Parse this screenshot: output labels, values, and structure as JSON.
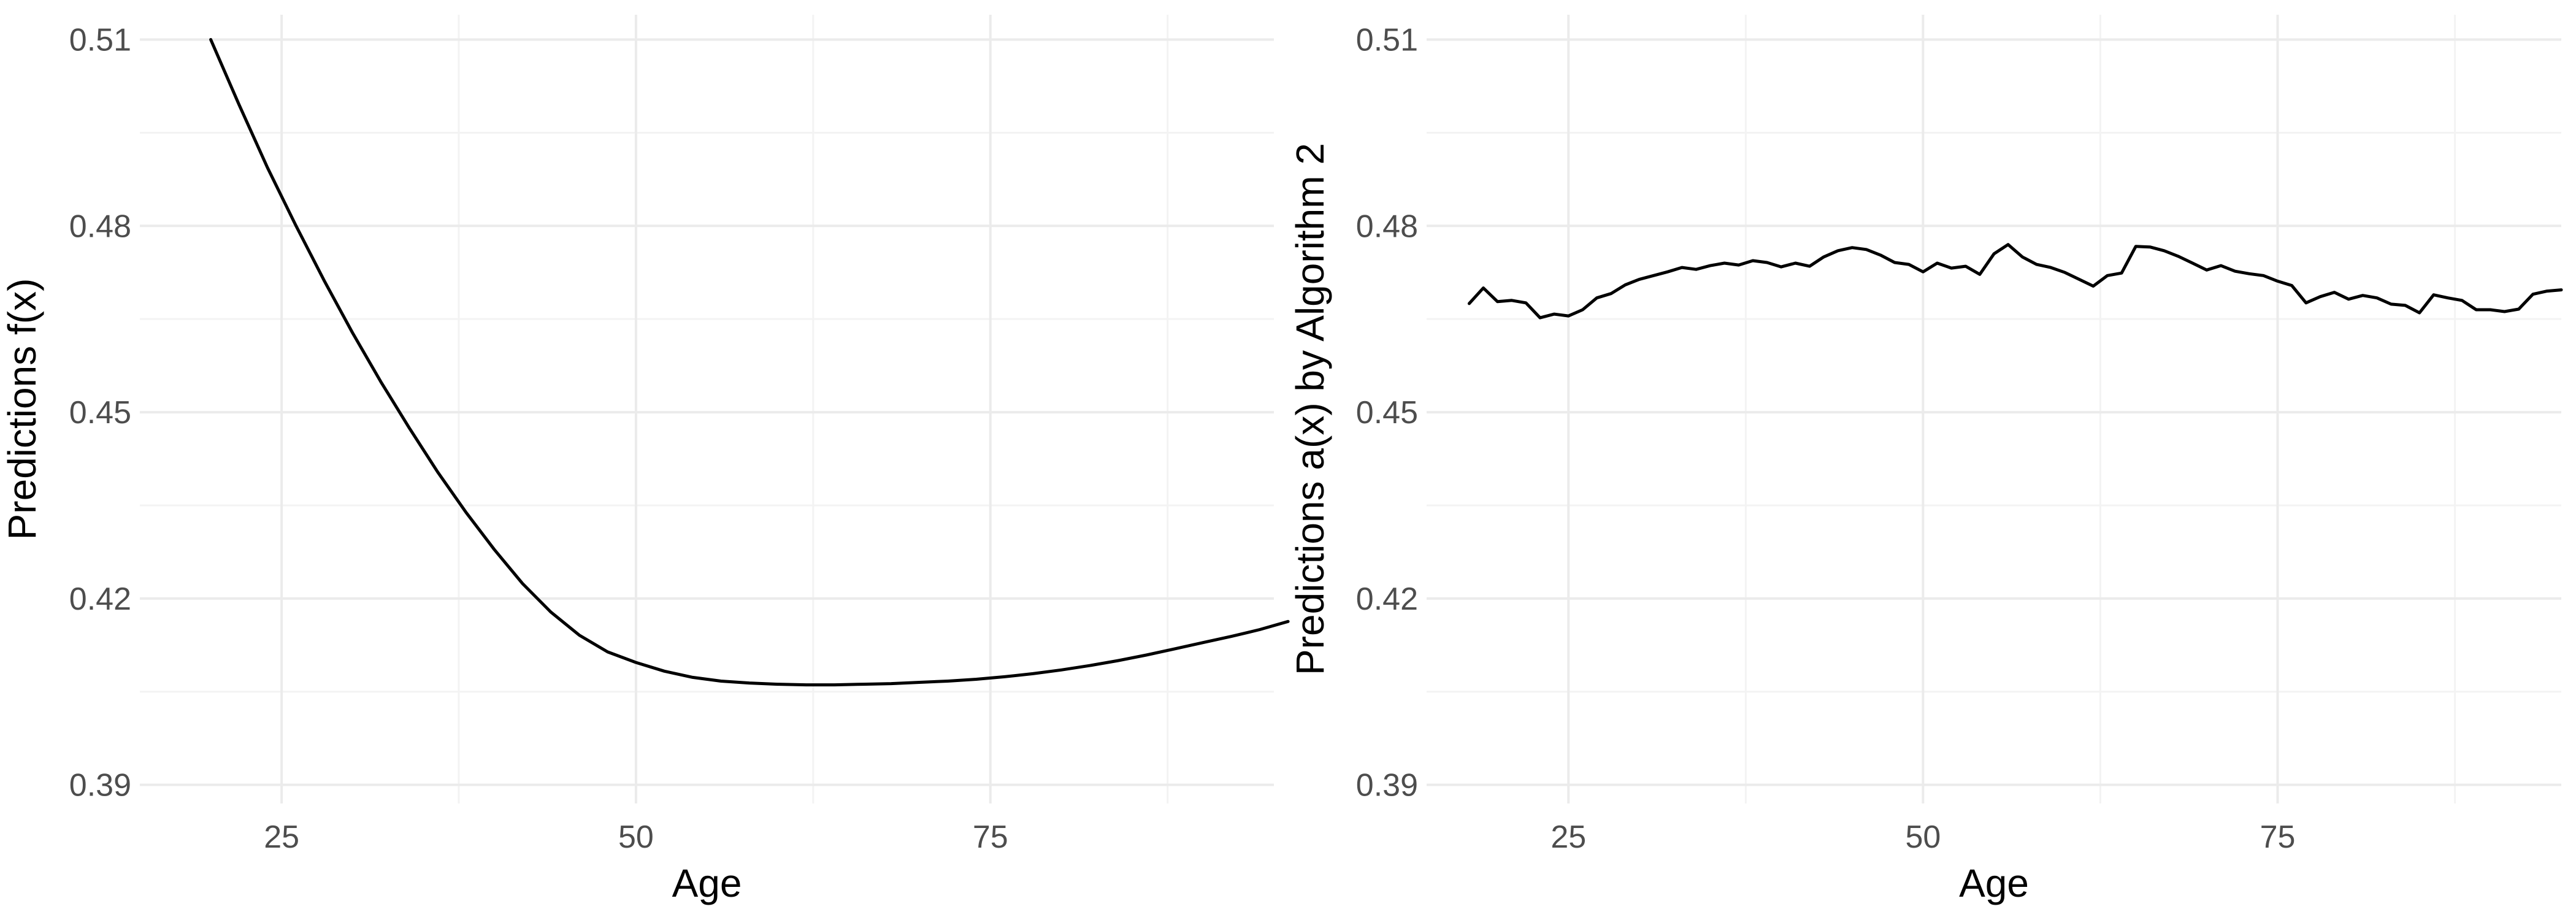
{
  "chart_data": [
    {
      "type": "line",
      "xlabel": "Age",
      "ylabel": "Predictions f(x)",
      "xlim": [
        15,
        95
      ],
      "ylim": [
        0.387,
        0.514
      ],
      "x_ticks": [
        25,
        50,
        75
      ],
      "y_ticks": [
        0.39,
        0.42,
        0.45,
        0.48,
        0.51
      ],
      "x_tick_labels": [
        "25",
        "50",
        "75"
      ],
      "y_tick_labels": [
        "0.39",
        "0.42",
        "0.45",
        "0.48",
        "0.51"
      ],
      "grid": true,
      "series": [
        {
          "color": "#000000",
          "x": [
            20,
            22,
            24,
            26,
            28,
            30,
            32,
            34,
            36,
            38,
            40,
            42,
            44,
            46,
            48,
            50,
            52,
            54,
            56,
            58,
            60,
            62,
            64,
            66,
            68,
            70,
            72,
            74,
            76,
            78,
            80,
            82,
            84,
            86,
            88,
            90,
            92,
            94,
            96
          ],
          "y": [
            0.51,
            0.4995,
            0.4894,
            0.4801,
            0.4712,
            0.4628,
            0.4549,
            0.4475,
            0.4404,
            0.4339,
            0.4279,
            0.4224,
            0.4178,
            0.4141,
            0.4114,
            0.4097,
            0.4083,
            0.4073,
            0.4067,
            0.4064,
            0.4062,
            0.4061,
            0.4061,
            0.4062,
            0.4063,
            0.4065,
            0.4067,
            0.407,
            0.4074,
            0.4079,
            0.4085,
            0.4092,
            0.41,
            0.4109,
            0.4119,
            0.4129,
            0.4139,
            0.415,
            0.4163
          ]
        }
      ]
    },
    {
      "type": "line",
      "xlabel": "Age",
      "ylabel": "Predictions a(x) by Algorithm 2",
      "xlim": [
        15,
        95
      ],
      "ylim": [
        0.387,
        0.514
      ],
      "x_ticks": [
        25,
        50,
        75
      ],
      "y_ticks": [
        0.39,
        0.42,
        0.45,
        0.48,
        0.51
      ],
      "x_tick_labels": [
        "25",
        "50",
        "75"
      ],
      "y_tick_labels": [
        "0.39",
        "0.42",
        "0.45",
        "0.48",
        "0.51"
      ],
      "grid": true,
      "series": [
        {
          "color": "#000000",
          "x": [
            18,
            19,
            20,
            21,
            22,
            23,
            24,
            25,
            26,
            27,
            28,
            29,
            30,
            31,
            32,
            33,
            34,
            35,
            36,
            37,
            38,
            39,
            40,
            41,
            42,
            43,
            44,
            45,
            46,
            47,
            48,
            49,
            50,
            51,
            52,
            53,
            54,
            55,
            56,
            57,
            58,
            59,
            60,
            61,
            62,
            63,
            64,
            65,
            66,
            67,
            68,
            69,
            70,
            71,
            72,
            73,
            74,
            75,
            76,
            77,
            78,
            79,
            80,
            81,
            82,
            83,
            84,
            85,
            86,
            87,
            88,
            89,
            90,
            91,
            92,
            93,
            94,
            95
          ],
          "y": [
            0.4675,
            0.47,
            0.4678,
            0.468,
            0.4676,
            0.4652,
            0.4658,
            0.4655,
            0.4665,
            0.4684,
            0.4691,
            0.4705,
            0.4714,
            0.472,
            0.4726,
            0.4733,
            0.473,
            0.4736,
            0.474,
            0.4737,
            0.4744,
            0.4741,
            0.4734,
            0.474,
            0.4735,
            0.475,
            0.476,
            0.4765,
            0.4762,
            0.4753,
            0.4741,
            0.4738,
            0.4726,
            0.474,
            0.4732,
            0.4735,
            0.4722,
            0.4755,
            0.477,
            0.475,
            0.4738,
            0.4733,
            0.4725,
            0.4714,
            0.4703,
            0.472,
            0.4724,
            0.4767,
            0.4766,
            0.476,
            0.4751,
            0.474,
            0.4729,
            0.4736,
            0.4727,
            0.4723,
            0.472,
            0.4711,
            0.4704,
            0.4676,
            0.4686,
            0.4693,
            0.4682,
            0.4688,
            0.4684,
            0.4674,
            0.4672,
            0.466,
            0.4689,
            0.4684,
            0.468,
            0.4665,
            0.4665,
            0.4662,
            0.4666,
            0.469,
            0.4695,
            0.4697
          ]
        }
      ]
    }
  ]
}
